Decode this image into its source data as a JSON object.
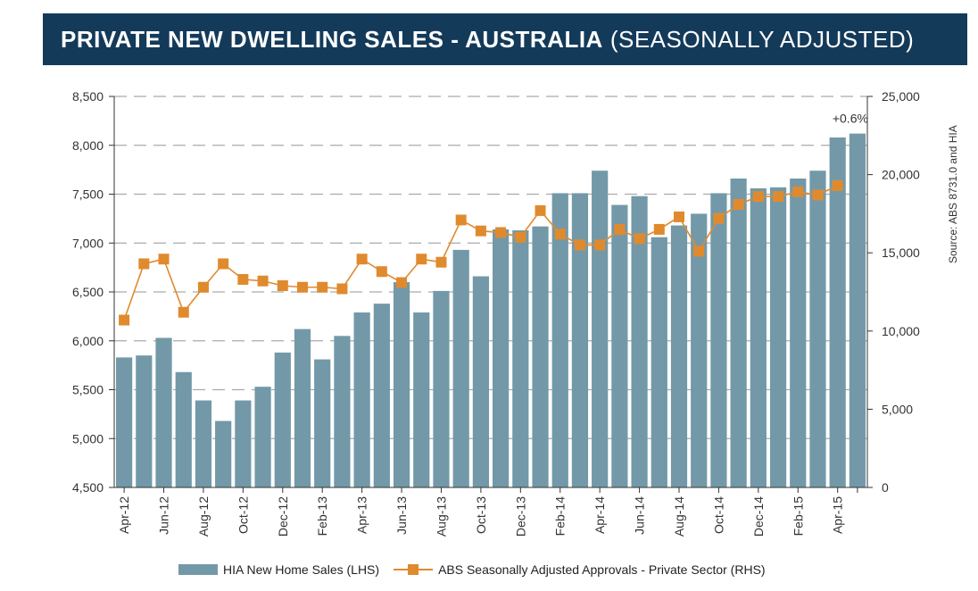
{
  "title": {
    "main": "PRIVATE NEW DWELLING SALES - AUSTRALIA",
    "sub": "(SEASONALLY ADJUSTED)"
  },
  "source": "Source: ABS 8731.0 and HIA",
  "annotation": "+0.6%",
  "colors": {
    "bar": "#7399a8",
    "line": "#e08a2e",
    "title_bg": "#143a5a",
    "grid": "#aaaaaa"
  },
  "chart_data": {
    "type": "bar+line",
    "categories": [
      "Apr-12",
      "May-12",
      "Jun-12",
      "Jul-12",
      "Aug-12",
      "Sep-12",
      "Oct-12",
      "Nov-12",
      "Dec-12",
      "Jan-13",
      "Feb-13",
      "Mar-13",
      "Apr-13",
      "May-13",
      "Jun-13",
      "Jul-13",
      "Aug-13",
      "Sep-13",
      "Oct-13",
      "Nov-13",
      "Dec-13",
      "Jan-14",
      "Feb-14",
      "Mar-14",
      "Apr-14",
      "May-14",
      "Jun-14",
      "Jul-14",
      "Aug-14",
      "Sep-14",
      "Oct-14",
      "Nov-14",
      "Dec-14",
      "Jan-15",
      "Feb-15",
      "Mar-15",
      "Apr-15"
    ],
    "x_tick_labels": [
      "Apr-12",
      "Jun-12",
      "Aug-12",
      "Oct-12",
      "Dec-12",
      "Feb-13",
      "Apr-13",
      "Jun-13",
      "Aug-13",
      "Oct-13",
      "Dec-13",
      "Feb-14",
      "Apr-14",
      "Jun-14",
      "Aug-14",
      "Oct-14",
      "Dec-14",
      "Feb-15",
      "Apr-15"
    ],
    "series": [
      {
        "name": "HIA New Home Sales (LHS)",
        "type": "bar",
        "axis": "left",
        "values": [
          5830,
          5850,
          6030,
          5680,
          5390,
          5180,
          5390,
          5530,
          5880,
          6120,
          5810,
          6050,
          6290,
          6380,
          6600,
          6290,
          6510,
          6930,
          6660,
          7140,
          7130,
          7170,
          7510,
          7510,
          7740,
          7390,
          7480,
          7060,
          7180,
          7300,
          7510,
          7660,
          7560,
          7570,
          7660,
          7740,
          8080
        ]
      },
      {
        "name": "ABS Seasonally Adjusted Approvals - Private Sector (RHS)",
        "type": "line",
        "axis": "right",
        "values": [
          10700,
          14300,
          14600,
          11200,
          12800,
          14300,
          13300,
          13200,
          12900,
          12800,
          12800,
          12700,
          14600,
          13800,
          13100,
          14600,
          14400,
          17100,
          16400,
          16300,
          16000,
          17700,
          16200,
          15500,
          15500,
          16500,
          15900,
          16500,
          17300,
          15100,
          17200,
          18100,
          18600,
          18600,
          18900,
          18700,
          19300
        ]
      }
    ],
    "extra_bar": {
      "label": "Apr-15",
      "value": 8120
    },
    "y_left": {
      "ticks": [
        "4,500",
        "5,000",
        "5,500",
        "6,000",
        "6,500",
        "7,000",
        "7,500",
        "8,000",
        "8,500"
      ],
      "min": 4500,
      "max": 8500
    },
    "y_right": {
      "ticks": [
        "0",
        "5,000",
        "10,000",
        "15,000",
        "20,000",
        "25,000"
      ],
      "min": 0,
      "max": 25000
    },
    "grid": "horizontal dashed",
    "legend_position": "bottom"
  }
}
